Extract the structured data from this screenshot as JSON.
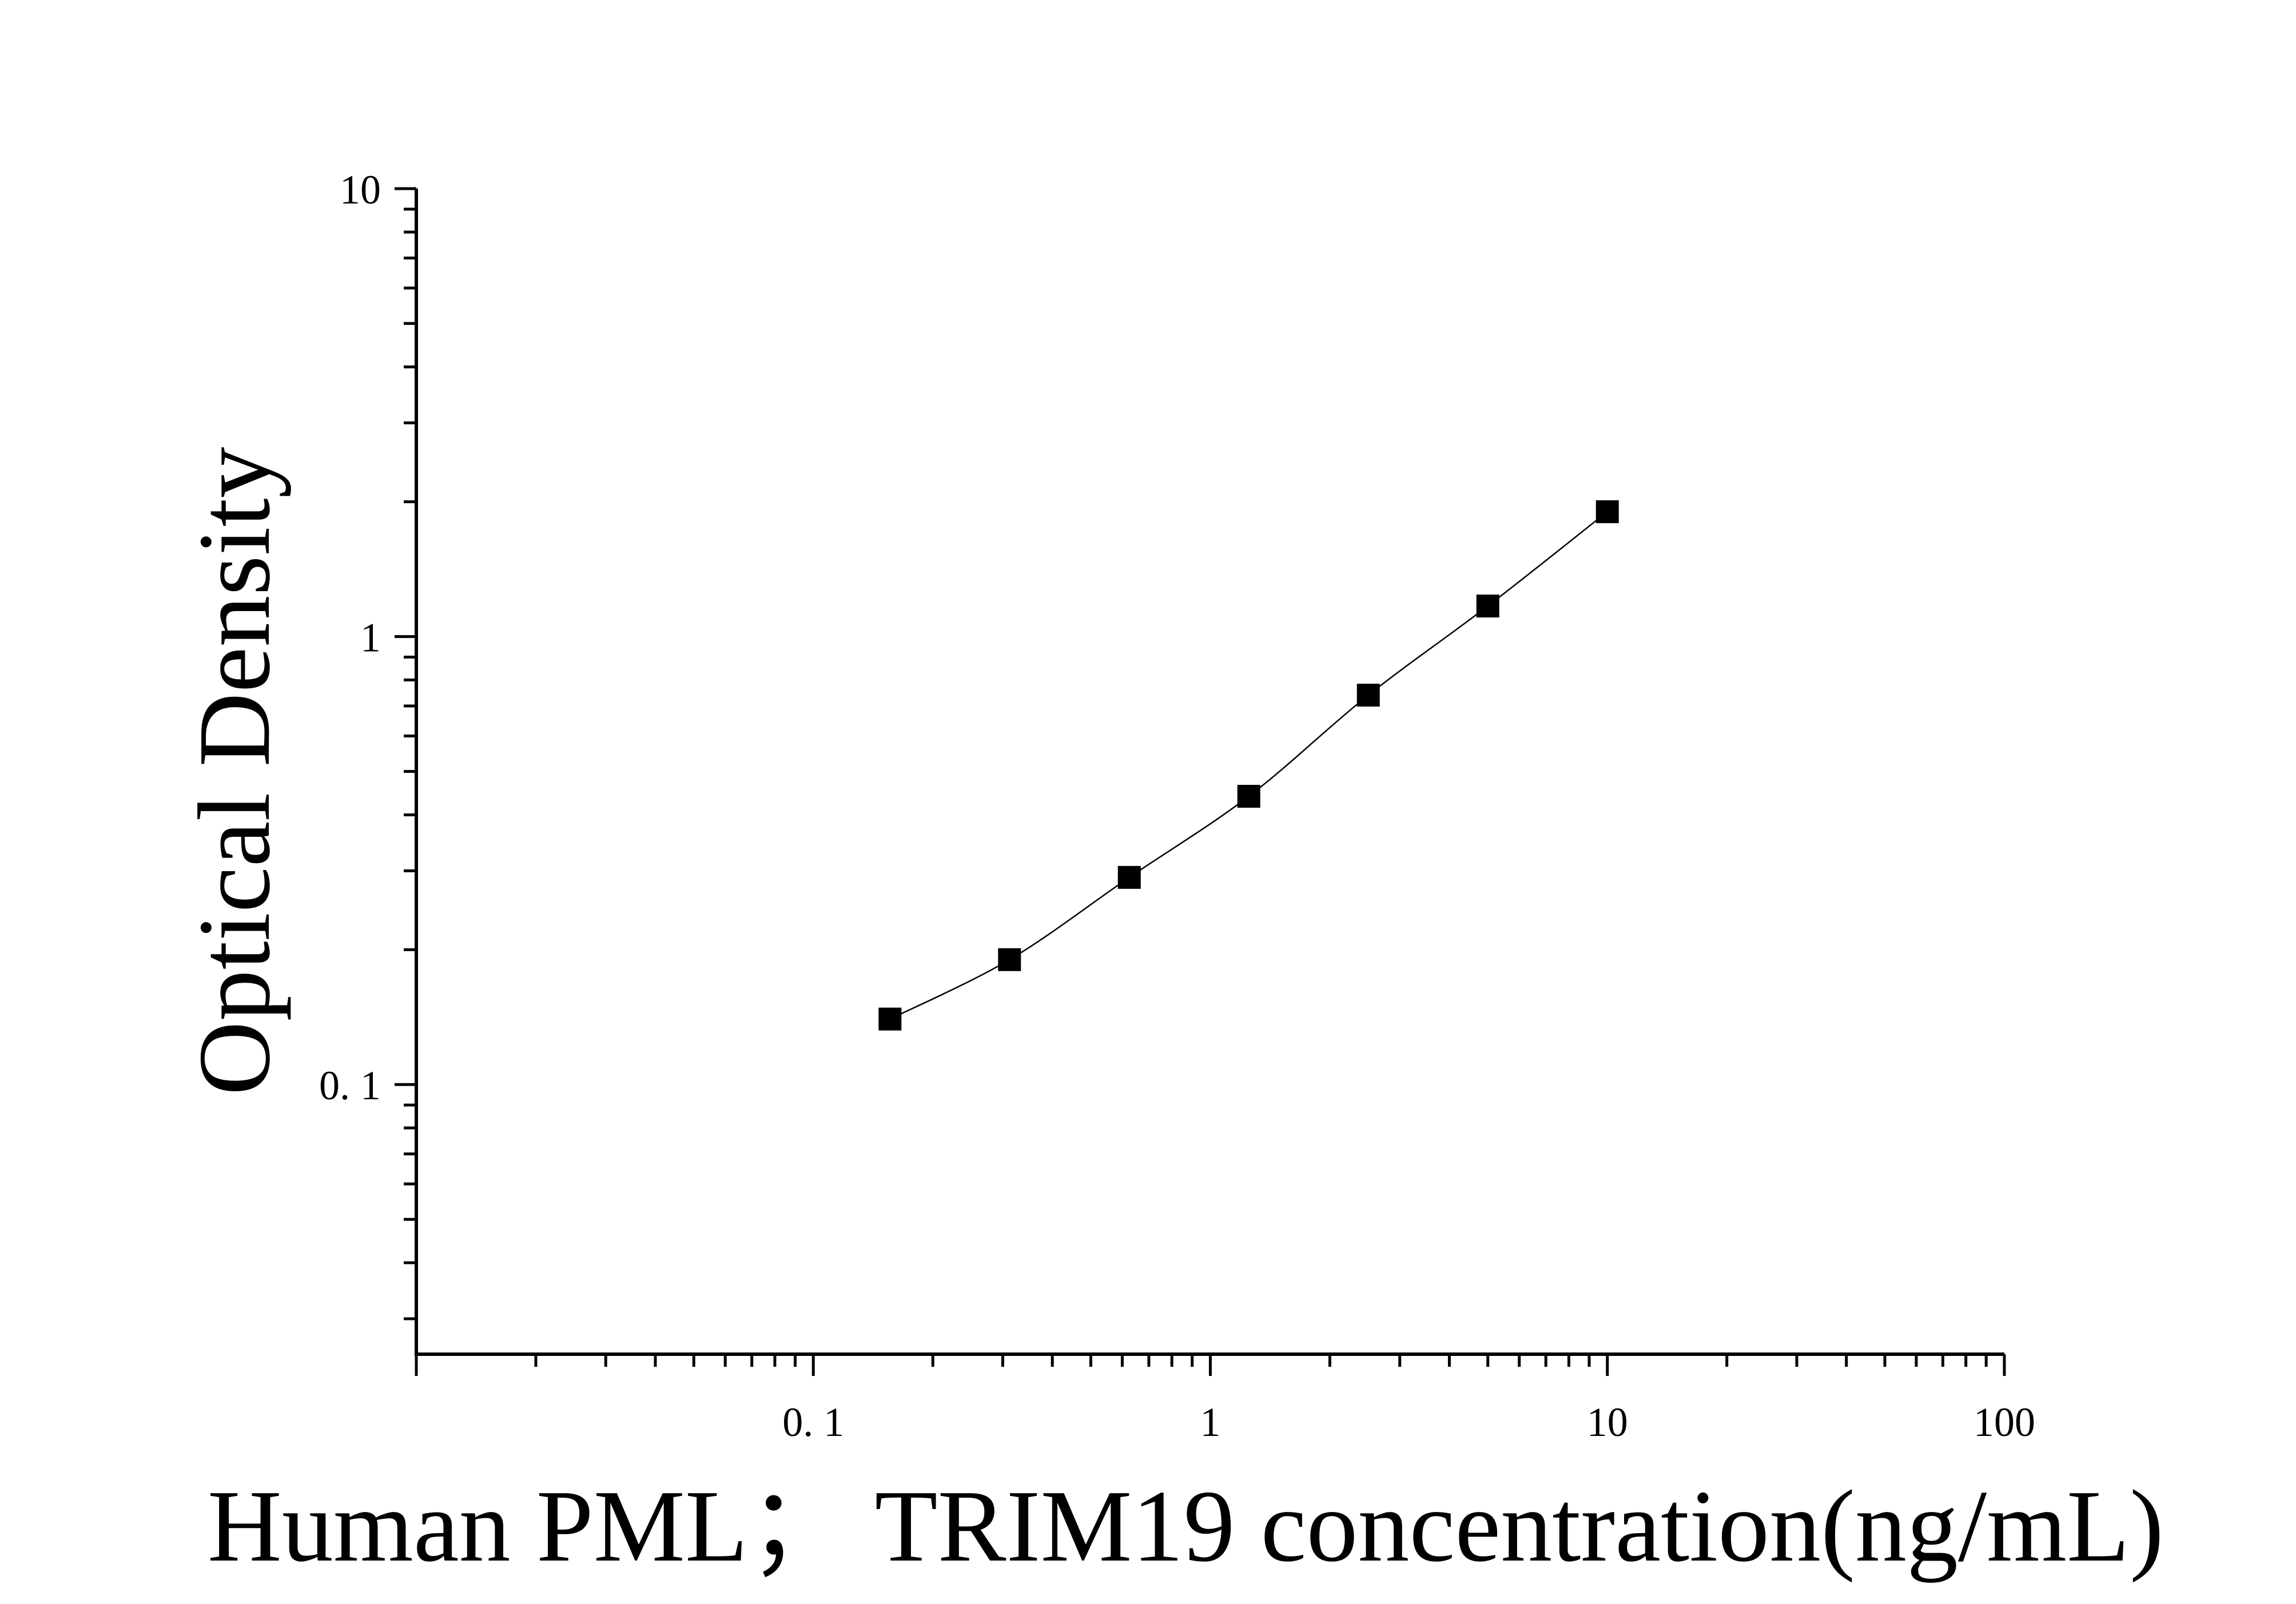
{
  "chart_data": {
    "type": "scatter",
    "title": "",
    "xlabel": "Human PML；  TRIM19 concentration(ng/mL)",
    "ylabel": "Optical Density",
    "x_scale": "log",
    "y_scale": "log",
    "xlim": [
      0.01,
      100
    ],
    "ylim": [
      0.025,
      10
    ],
    "x_ticks": [
      "0.1",
      "1",
      "10",
      "100"
    ],
    "y_ticks": [
      "0.1",
      "1",
      "10"
    ],
    "x_tick_labels": [
      "0. 1",
      "1",
      "10",
      "100"
    ],
    "y_tick_labels": [
      "0. 1",
      "1",
      "10"
    ],
    "grid": false,
    "legend": false,
    "marker": "square",
    "fit_line": true,
    "series": [
      {
        "x": [
          0.156,
          0.312,
          0.625,
          1.25,
          2.5,
          5,
          10
        ],
        "y": [
          0.14,
          0.19,
          0.29,
          0.44,
          0.74,
          1.17,
          1.9
        ]
      }
    ]
  }
}
